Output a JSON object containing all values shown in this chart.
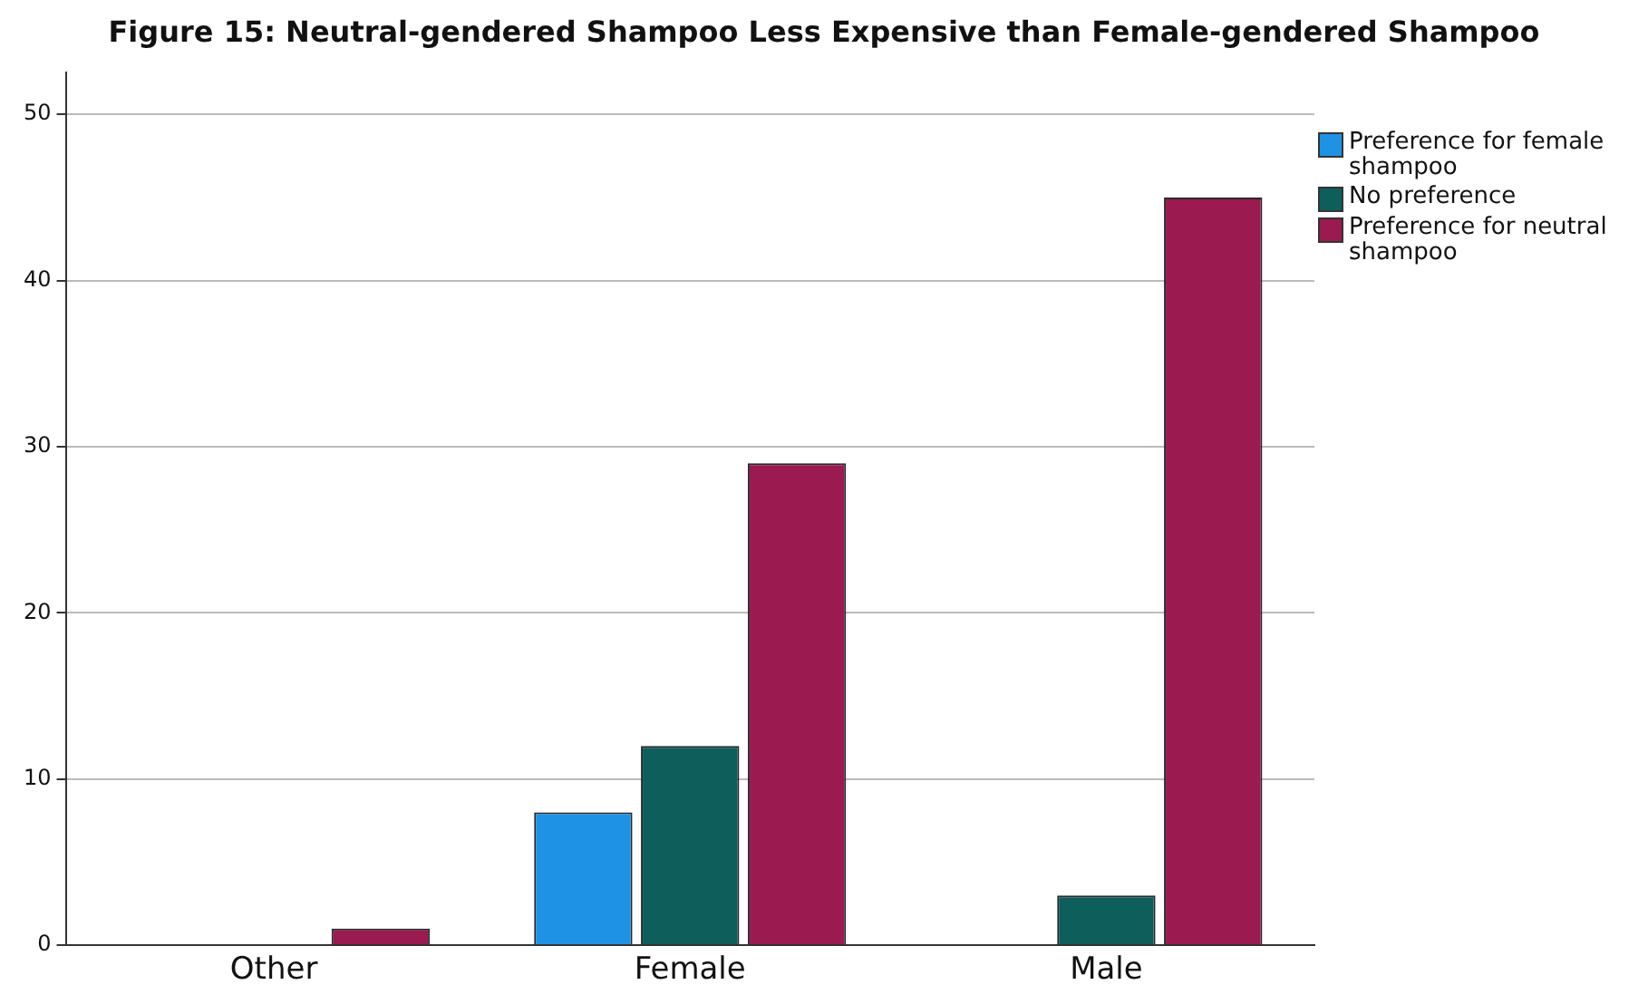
{
  "chart_data": {
    "type": "bar",
    "title": "Figure 15: Neutral-gendered Shampoo Less Expensive than Female-gendered Shampoo",
    "categories": [
      "Other",
      "Female",
      "Male"
    ],
    "series": [
      {
        "name": "Preference for female shampoo",
        "color": "#1e93e6",
        "values": [
          0,
          8,
          0
        ]
      },
      {
        "name": "No preference",
        "color": "#0e5e5b",
        "values": [
          0,
          12,
          3
        ]
      },
      {
        "name": "Preference for neutral shampoo",
        "color": "#9b1a4f",
        "values": [
          1,
          29,
          45
        ]
      }
    ],
    "ylim": [
      0,
      52.5
    ],
    "yticks": [
      0,
      10,
      20,
      30,
      40,
      50
    ],
    "grid": "y",
    "legend": "top right"
  }
}
